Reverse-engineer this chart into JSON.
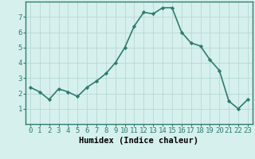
{
  "x": [
    0,
    1,
    2,
    3,
    4,
    5,
    6,
    7,
    8,
    9,
    10,
    11,
    12,
    13,
    14,
    15,
    16,
    17,
    18,
    19,
    20,
    21,
    22,
    23
  ],
  "y": [
    2.4,
    2.1,
    1.6,
    2.3,
    2.1,
    1.8,
    2.4,
    2.8,
    3.3,
    4.0,
    5.0,
    6.4,
    7.3,
    7.2,
    7.6,
    7.6,
    6.0,
    5.3,
    5.1,
    4.2,
    3.5,
    1.5,
    1.0,
    1.6
  ],
  "line_color": "#2e7d6e",
  "marker": "D",
  "marker_size": 2.2,
  "line_width": 1.2,
  "bg_color": "#d6f0ee",
  "grid_color": "#b8d8d4",
  "xlabel": "Humidex (Indice chaleur)",
  "xlabel_fontsize": 7.5,
  "tick_fontsize": 6.5,
  "ylim": [
    0,
    8
  ],
  "xlim": [
    -0.5,
    23.5
  ],
  "yticks": [
    1,
    2,
    3,
    4,
    5,
    6,
    7
  ],
  "xticks": [
    0,
    1,
    2,
    3,
    4,
    5,
    6,
    7,
    8,
    9,
    10,
    11,
    12,
    13,
    14,
    15,
    16,
    17,
    18,
    19,
    20,
    21,
    22,
    23
  ],
  "spine_color": "#2e7d6e"
}
